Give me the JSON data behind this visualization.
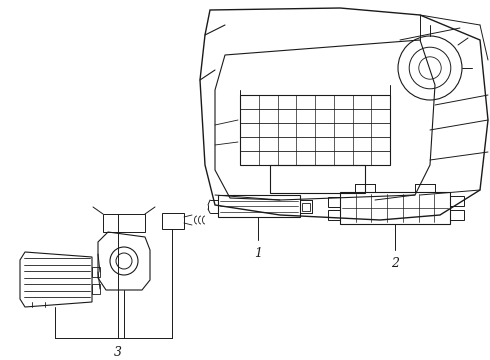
{
  "bg_color": "#ffffff",
  "line_color": "#1a1a1a",
  "label_fontsize": 8,
  "figsize": [
    4.9,
    3.6
  ],
  "dpi": 100
}
